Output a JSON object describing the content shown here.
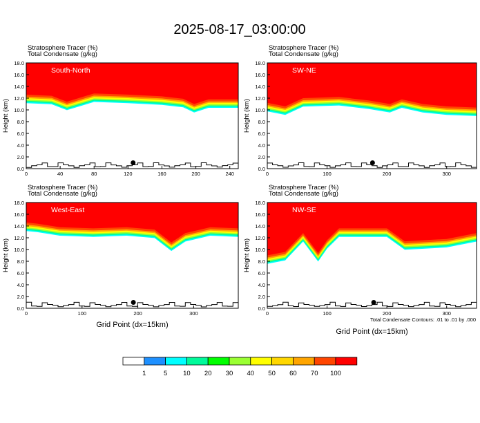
{
  "title": "2025-08-17_03:00:00",
  "colorbar": {
    "labels": [
      "1",
      "5",
      "10",
      "20",
      "30",
      "40",
      "50",
      "60",
      "70",
      "100"
    ],
    "colors": [
      "#ffffff",
      "#1e90ff",
      "#00ffff",
      "#00fa9a",
      "#00ff00",
      "#9aff32",
      "#ffff00",
      "#ffd700",
      "#ffa500",
      "#ff4500",
      "#ff0000"
    ]
  },
  "footnote": "Total Condensate Contours: .01 to .01 by .000",
  "chart_data": [
    {
      "type": "heatmap",
      "label": "South-North",
      "subtitle_1": "Stratosphere Tracer   (%)",
      "subtitle_2": "Total Condensate   (g/kg)",
      "ylabel": "Height (km)",
      "xlabel": "",
      "xlim": [
        0,
        250
      ],
      "ylim": [
        0,
        18
      ],
      "xticks": [
        "0",
        "40",
        "80",
        "120",
        "160",
        "200",
        "240"
      ],
      "yticks": [
        "0.0",
        "2.0",
        "4.0",
        "6.0",
        "8.0",
        "10.0",
        "12.0",
        "14.0",
        "16.0",
        "18.0"
      ],
      "tracer_bottom": [
        [
          0,
          12.6
        ],
        [
          30,
          12.4
        ],
        [
          48,
          11.4
        ],
        [
          80,
          12.8
        ],
        [
          120,
          12.6
        ],
        [
          160,
          12.3
        ],
        [
          185,
          11.9
        ],
        [
          198,
          11.0
        ],
        [
          215,
          11.8
        ],
        [
          250,
          11.8
        ]
      ],
      "marker_x": 126
    },
    {
      "type": "heatmap",
      "label": "SW-NE",
      "subtitle_1": "Stratosphere Tracer   (%)",
      "subtitle_2": "Total Condensate   (g/kg)",
      "ylabel": "Height (km)",
      "xlabel": "",
      "xlim": [
        0,
        350
      ],
      "ylim": [
        0,
        18
      ],
      "xticks": [
        "0",
        "100",
        "200",
        "300"
      ],
      "yticks": [
        "0.0",
        "2.0",
        "4.0",
        "6.0",
        "8.0",
        "10.0",
        "12.0",
        "14.0",
        "16.0",
        "18.0"
      ],
      "tracer_bottom": [
        [
          0,
          11.2
        ],
        [
          30,
          10.6
        ],
        [
          60,
          12.0
        ],
        [
          120,
          12.2
        ],
        [
          170,
          11.6
        ],
        [
          205,
          11.0
        ],
        [
          225,
          11.8
        ],
        [
          260,
          11.0
        ],
        [
          300,
          10.6
        ],
        [
          350,
          10.4
        ]
      ],
      "marker_x": 176
    },
    {
      "type": "heatmap",
      "label": "West-East",
      "subtitle_1": "Stratosphere Tracer   (%)",
      "subtitle_2": "Total Condensate   (g/kg)",
      "ylabel": "Height (km)",
      "xlabel": "Grid Point (dx=15km)",
      "xlim": [
        0,
        380
      ],
      "ylim": [
        0,
        18
      ],
      "xticks": [
        "0",
        "100",
        "200",
        "300"
      ],
      "yticks": [
        "0.0",
        "2.0",
        "4.0",
        "6.0",
        "8.0",
        "10.0",
        "12.0",
        "14.0",
        "16.0",
        "18.0"
      ],
      "tracer_bottom": [
        [
          0,
          14.6
        ],
        [
          20,
          14.4
        ],
        [
          60,
          13.8
        ],
        [
          120,
          13.6
        ],
        [
          180,
          13.8
        ],
        [
          230,
          13.4
        ],
        [
          260,
          11.2
        ],
        [
          285,
          12.8
        ],
        [
          330,
          13.8
        ],
        [
          380,
          13.6
        ]
      ],
      "marker_x": 192
    },
    {
      "type": "heatmap",
      "label": "NW-SE",
      "subtitle_1": "Stratosphere Tracer   (%)",
      "subtitle_2": "Total Condensate   (g/kg)",
      "ylabel": "Height (km)",
      "xlabel": "Grid Point (dx=15km)",
      "xlim": [
        0,
        350
      ],
      "ylim": [
        0,
        18
      ],
      "xticks": [
        "0",
        "100",
        "200",
        "300"
      ],
      "yticks": [
        "0.0",
        "2.0",
        "4.0",
        "6.0",
        "8.0",
        "10.0",
        "12.0",
        "14.0",
        "16.0",
        "18.0"
      ],
      "tracer_bottom": [
        [
          0,
          9.0
        ],
        [
          30,
          9.6
        ],
        [
          60,
          12.8
        ],
        [
          85,
          9.4
        ],
        [
          100,
          11.6
        ],
        [
          120,
          13.6
        ],
        [
          200,
          13.6
        ],
        [
          230,
          11.4
        ],
        [
          300,
          11.8
        ],
        [
          350,
          12.8
        ]
      ],
      "marker_x": 178
    }
  ]
}
